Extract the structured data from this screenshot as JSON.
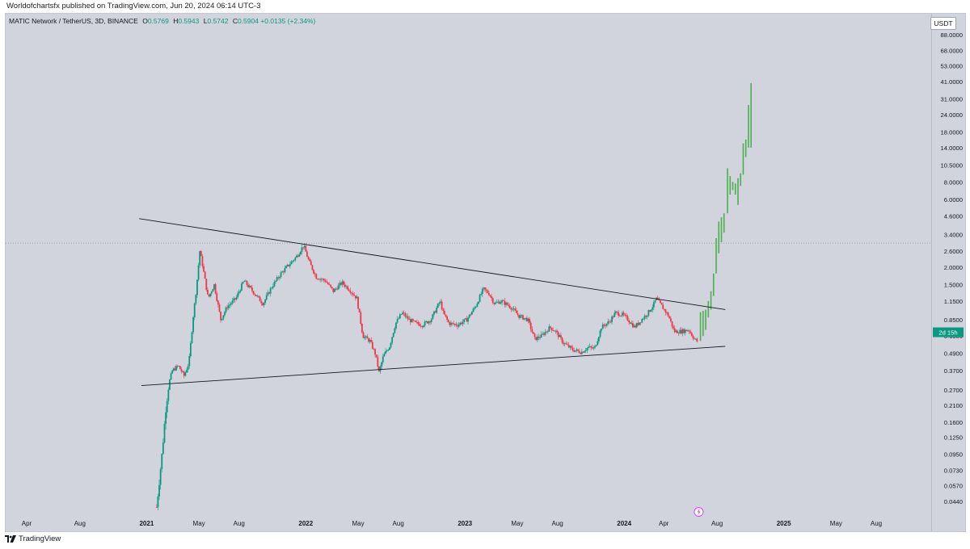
{
  "header": {
    "published": "Worldofchartsfx published on TradingView.com, Jun 20, 2024 06:14 UTC-3"
  },
  "legend": {
    "symbol": "MATIC Network / TetherUS, 3D, BINANCE",
    "o_label": "O",
    "o_value": "0.5769",
    "h_label": "H",
    "h_value": "0.5943",
    "l_label": "L",
    "l_value": "0.5742",
    "c_label": "C",
    "c_value": "0.5904",
    "change": "+0.0135 (+2.34%)"
  },
  "currency_button": "USDT",
  "countdown_label": "2d 15h",
  "footer": {
    "brand": "TradingView"
  },
  "colors": {
    "background": "#d1d4dc",
    "up_candle": "#089981",
    "down_candle": "#f23645",
    "projection": "#4caf50",
    "trendline": "#131722",
    "countdown_bg": "#089981"
  },
  "chart_data": {
    "type": "candlestick",
    "y_scale": "log",
    "y_ticks": [
      "88.0000",
      "68.0000",
      "53.0000",
      "41.0000",
      "31.0000",
      "24.0000",
      "18.0000",
      "14.0000",
      "10.5000",
      "8.0000",
      "6.0000",
      "4.6000",
      "3.4000",
      "2.6000",
      "2.0000",
      "1.5000",
      "1.1500",
      "0.8500",
      "0.6500",
      "0.4900",
      "0.3700",
      "0.2700",
      "0.2100",
      "0.1600",
      "0.1250",
      "0.0950",
      "0.0730",
      "0.0570",
      "0.0440"
    ],
    "x_ticks": [
      {
        "label": "Apr",
        "date": "2020-04-01",
        "bold": false
      },
      {
        "label": "Aug",
        "date": "2020-08-01",
        "bold": false
      },
      {
        "label": "2021",
        "date": "2021-01-01",
        "bold": true
      },
      {
        "label": "May",
        "date": "2021-05-01",
        "bold": false
      },
      {
        "label": "Aug",
        "date": "2021-08-01",
        "bold": false
      },
      {
        "label": "2022",
        "date": "2022-01-01",
        "bold": true
      },
      {
        "label": "May",
        "date": "2022-05-01",
        "bold": false
      },
      {
        "label": "Aug",
        "date": "2022-08-01",
        "bold": false
      },
      {
        "label": "2023",
        "date": "2023-01-01",
        "bold": true
      },
      {
        "label": "May",
        "date": "2023-05-01",
        "bold": false
      },
      {
        "label": "Aug",
        "date": "2023-08-01",
        "bold": false
      },
      {
        "label": "2024",
        "date": "2024-01-01",
        "bold": true
      },
      {
        "label": "Apr",
        "date": "2024-04-01",
        "bold": false
      },
      {
        "label": "Aug",
        "date": "2024-08-01",
        "bold": false
      },
      {
        "label": "2025",
        "date": "2025-01-01",
        "bold": true
      },
      {
        "label": "May",
        "date": "2025-05-01",
        "bold": false
      },
      {
        "label": "Aug",
        "date": "2025-08-01",
        "bold": false
      }
    ],
    "price_path": [
      [
        "2021-01-24",
        0.04
      ],
      [
        "2021-02-06",
        0.1
      ],
      [
        "2021-02-14",
        0.2
      ],
      [
        "2021-02-21",
        0.3
      ],
      [
        "2021-03-01",
        0.37
      ],
      [
        "2021-03-15",
        0.4
      ],
      [
        "2021-03-28",
        0.34
      ],
      [
        "2021-04-08",
        0.42
      ],
      [
        "2021-04-18",
        0.9
      ],
      [
        "2021-04-25",
        1.4
      ],
      [
        "2021-05-03",
        2.6
      ],
      [
        "2021-05-10",
        2.0
      ],
      [
        "2021-05-22",
        1.2
      ],
      [
        "2021-06-05",
        1.5
      ],
      [
        "2021-06-20",
        0.85
      ],
      [
        "2021-07-05",
        1.05
      ],
      [
        "2021-07-25",
        1.2
      ],
      [
        "2021-08-12",
        1.6
      ],
      [
        "2021-09-01",
        1.35
      ],
      [
        "2021-09-25",
        1.1
      ],
      [
        "2021-10-15",
        1.45
      ],
      [
        "2021-11-05",
        1.8
      ],
      [
        "2021-11-25",
        2.1
      ],
      [
        "2021-12-12",
        2.4
      ],
      [
        "2021-12-27",
        2.85
      ],
      [
        "2022-01-08",
        2.2
      ],
      [
        "2022-01-25",
        1.7
      ],
      [
        "2022-02-15",
        1.6
      ],
      [
        "2022-03-05",
        1.35
      ],
      [
        "2022-03-25",
        1.55
      ],
      [
        "2022-04-10",
        1.4
      ],
      [
        "2022-04-28",
        1.2
      ],
      [
        "2022-05-12",
        0.65
      ],
      [
        "2022-05-28",
        0.6
      ],
      [
        "2022-06-10",
        0.48
      ],
      [
        "2022-06-18",
        0.36
      ],
      [
        "2022-06-28",
        0.47
      ],
      [
        "2022-07-12",
        0.55
      ],
      [
        "2022-07-26",
        0.8
      ],
      [
        "2022-08-10",
        0.95
      ],
      [
        "2022-08-25",
        0.85
      ],
      [
        "2022-09-10",
        0.8
      ],
      [
        "2022-09-25",
        0.78
      ],
      [
        "2022-10-15",
        0.85
      ],
      [
        "2022-11-05",
        1.15
      ],
      [
        "2022-11-12",
        0.95
      ],
      [
        "2022-11-25",
        0.8
      ],
      [
        "2022-12-15",
        0.78
      ],
      [
        "2023-01-05",
        0.85
      ],
      [
        "2023-01-25",
        1.05
      ],
      [
        "2023-02-12",
        1.4
      ],
      [
        "2023-02-25",
        1.3
      ],
      [
        "2023-03-10",
        1.1
      ],
      [
        "2023-03-25",
        1.15
      ],
      [
        "2023-04-15",
        1.05
      ],
      [
        "2023-05-05",
        0.9
      ],
      [
        "2023-05-25",
        0.85
      ],
      [
        "2023-06-10",
        0.62
      ],
      [
        "2023-06-25",
        0.65
      ],
      [
        "2023-07-15",
        0.75
      ],
      [
        "2023-07-28",
        0.7
      ],
      [
        "2023-08-15",
        0.58
      ],
      [
        "2023-09-05",
        0.52
      ],
      [
        "2023-09-25",
        0.5
      ],
      [
        "2023-10-10",
        0.54
      ],
      [
        "2023-10-25",
        0.53
      ],
      [
        "2023-11-10",
        0.75
      ],
      [
        "2023-11-28",
        0.82
      ],
      [
        "2023-12-12",
        0.95
      ],
      [
        "2023-12-28",
        0.92
      ],
      [
        "2024-01-10",
        0.85
      ],
      [
        "2024-01-25",
        0.75
      ],
      [
        "2024-02-10",
        0.85
      ],
      [
        "2024-02-25",
        0.95
      ],
      [
        "2024-03-10",
        1.1
      ],
      [
        "2024-03-14",
        1.2
      ],
      [
        "2024-03-28",
        1.05
      ],
      [
        "2024-04-12",
        0.9
      ],
      [
        "2024-04-25",
        0.7
      ],
      [
        "2024-05-10",
        0.7
      ],
      [
        "2024-05-28",
        0.72
      ],
      [
        "2024-06-10",
        0.62
      ],
      [
        "2024-06-18",
        0.59
      ]
    ],
    "projection": [
      [
        "2024-06-24",
        0.6,
        0.96
      ],
      [
        "2024-06-30",
        0.65,
        0.98
      ],
      [
        "2024-07-06",
        0.72,
        1.0
      ],
      [
        "2024-07-12",
        0.88,
        1.15
      ],
      [
        "2024-07-18",
        1.0,
        1.35
      ],
      [
        "2024-07-24",
        1.25,
        1.8
      ],
      [
        "2024-07-30",
        1.8,
        3.2
      ],
      [
        "2024-08-05",
        2.5,
        4.2
      ],
      [
        "2024-08-11",
        3.0,
        4.5
      ],
      [
        "2024-08-17",
        3.5,
        4.8
      ],
      [
        "2024-08-25",
        4.8,
        10.0
      ],
      [
        "2024-08-31",
        6.5,
        8.8
      ],
      [
        "2024-09-06",
        7.0,
        8.0
      ],
      [
        "2024-09-12",
        6.5,
        7.8
      ],
      [
        "2024-09-18",
        5.5,
        8.5
      ],
      [
        "2024-09-24",
        7.5,
        9.2
      ],
      [
        "2024-09-30",
        9.0,
        15.0
      ],
      [
        "2024-10-06",
        12.0,
        16.0
      ],
      [
        "2024-10-12",
        14.0,
        28.0
      ],
      [
        "2024-10-18",
        14.0,
        40.0
      ]
    ],
    "trendlines": [
      {
        "name": "upper",
        "from": [
          "2020-12-15",
          4.4
        ],
        "to": [
          "2024-08-20",
          1.0
        ]
      },
      {
        "name": "lower",
        "from": [
          "2020-12-20",
          0.29
        ],
        "to": [
          "2024-08-20",
          0.55
        ]
      }
    ],
    "horizontal_level": 2.95,
    "last_price": 0.5904
  }
}
